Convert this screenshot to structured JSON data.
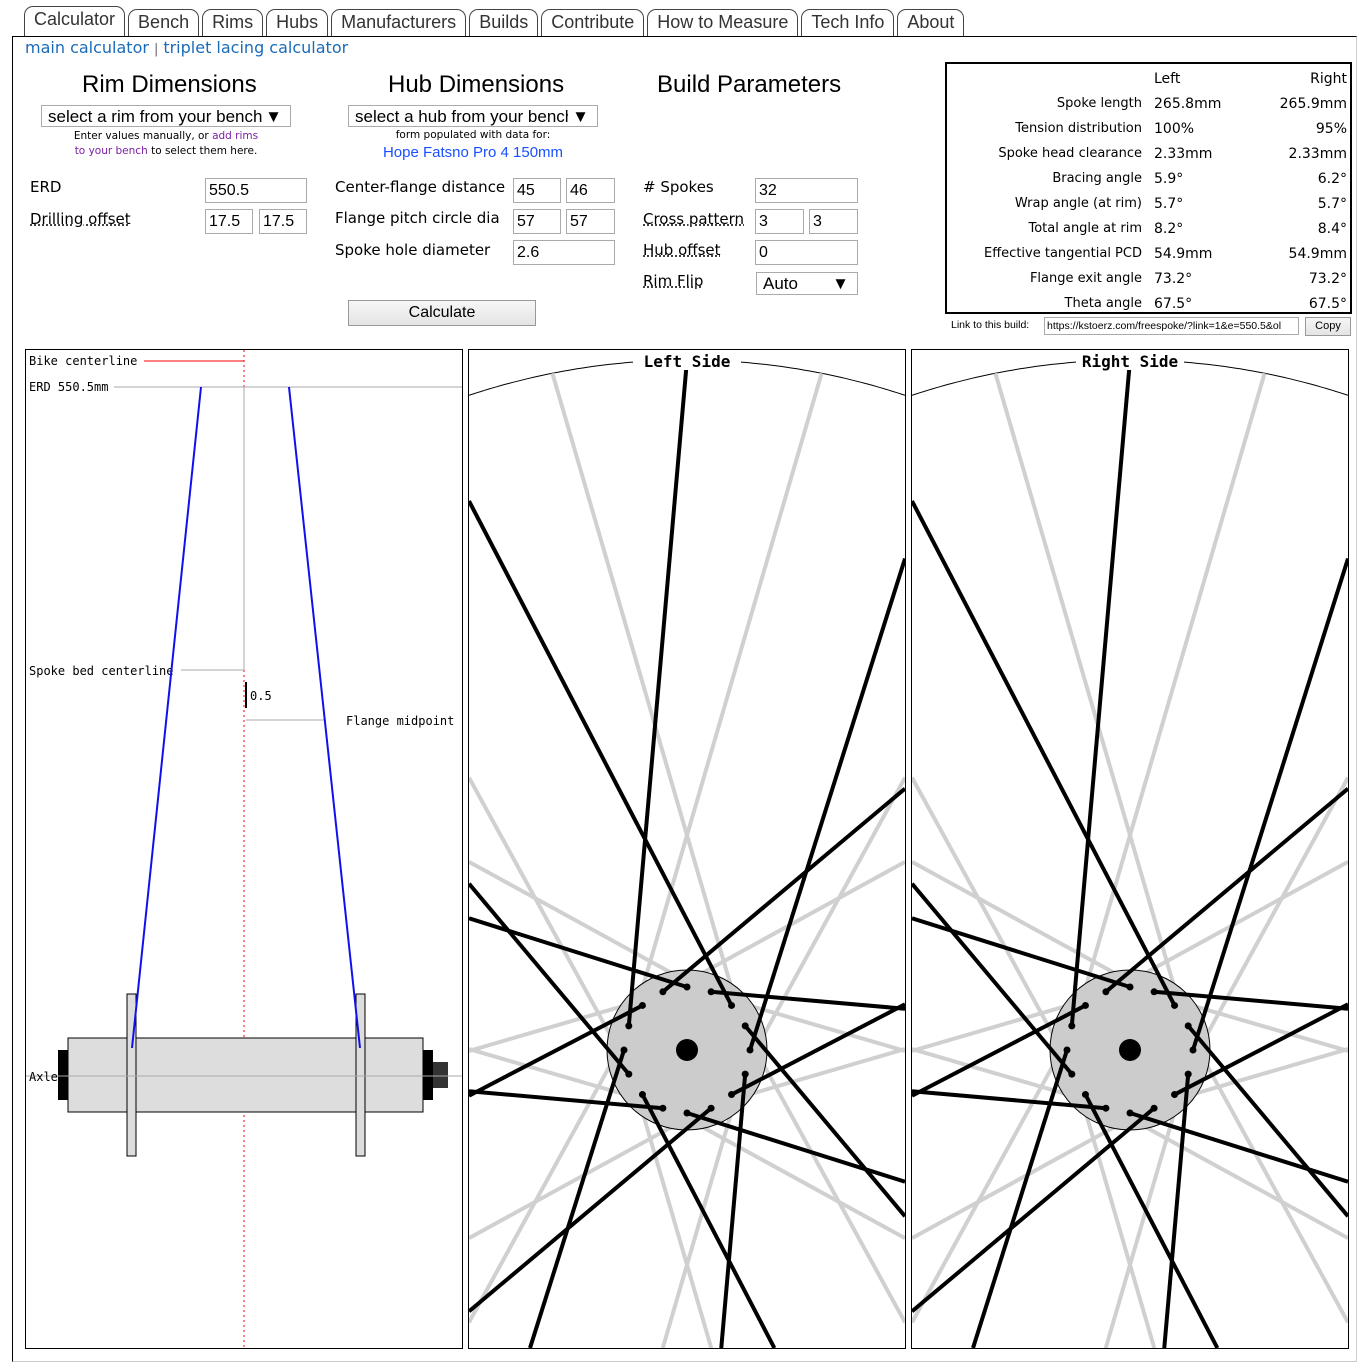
{
  "tabs": [
    "Calculator",
    "Bench",
    "Rims",
    "Hubs",
    "Manufacturers",
    "Builds",
    "Contribute",
    "How to Measure",
    "Tech Info",
    "About"
  ],
  "subnav": {
    "main": "main calculator",
    "sep": "|",
    "triplet": "triplet lacing calculator"
  },
  "rim": {
    "title": "Rim Dimensions",
    "select": "select a rim from your bench",
    "note1": "Enter values manually, or ",
    "note_link1": "add rims",
    "note_link2": "to your bench",
    "note2": " to select them here.",
    "erd_label": "ERD",
    "erd": "550.5",
    "drill_label": "Drilling offset",
    "drill_l": "17.5",
    "drill_r": "17.5"
  },
  "hub": {
    "title": "Hub Dimensions",
    "select": "select a hub from your bench",
    "note": "form populated with data for:",
    "hub_name": "Hope Fatsno Pro 4 150mm",
    "cfd_label": "Center-flange distance",
    "cfd_l": "45",
    "cfd_r": "46",
    "fpcd_label": "Flange pitch circle dia",
    "fpcd_l": "57",
    "fpcd_r": "57",
    "shd_label": "Spoke hole diameter",
    "shd": "2.6",
    "calc": "Calculate"
  },
  "build": {
    "title": "Build Parameters",
    "spokes_label": "# Spokes",
    "spokes": "32",
    "cross_label": "Cross pattern",
    "cross_l": "3",
    "cross_r": "3",
    "offset_label": "Hub offset",
    "offset": "0",
    "flip_label": "Rim Flip",
    "flip": "Auto"
  },
  "results": {
    "head_left": "Left",
    "head_right": "Right",
    "rows": [
      [
        "Spoke length",
        "265.8mm",
        "265.9mm"
      ],
      [
        "Tension distribution",
        "100%",
        "95%"
      ],
      [
        "Spoke head clearance",
        "2.33mm",
        "2.33mm"
      ],
      [
        "Bracing angle",
        "5.9°",
        "6.2°"
      ],
      [
        "Wrap angle (at rim)",
        "5.7°",
        "5.7°"
      ],
      [
        "Total angle at rim",
        "8.2°",
        "8.4°"
      ],
      [
        "Effective tangential PCD",
        "54.9mm",
        "54.9mm"
      ],
      [
        "Flange exit angle",
        "73.2°",
        "73.2°"
      ],
      [
        "Theta angle",
        "67.5°",
        "67.5°"
      ]
    ],
    "link_label": "Link to this build:",
    "link": "https://kstoerz.com/freespoke/?link=1&e=550.5&ol",
    "copy": "Copy"
  },
  "diagram": {
    "bike_cl": "Bike centerline",
    "erd": "ERD 550.5mm",
    "spoke_bed": "Spoke bed centerline",
    "offset": "0.5",
    "flange_mid": "Flange midpoint",
    "axle": "Axle",
    "left_side": "Left Side",
    "right_side": "Right Side"
  },
  "colors": {
    "link": "#1a6bb8",
    "purple": "#7a1fa2",
    "hub_name": "#1a4fff",
    "spoke_profile": "#1010ee",
    "centerline": "#ff0000"
  }
}
